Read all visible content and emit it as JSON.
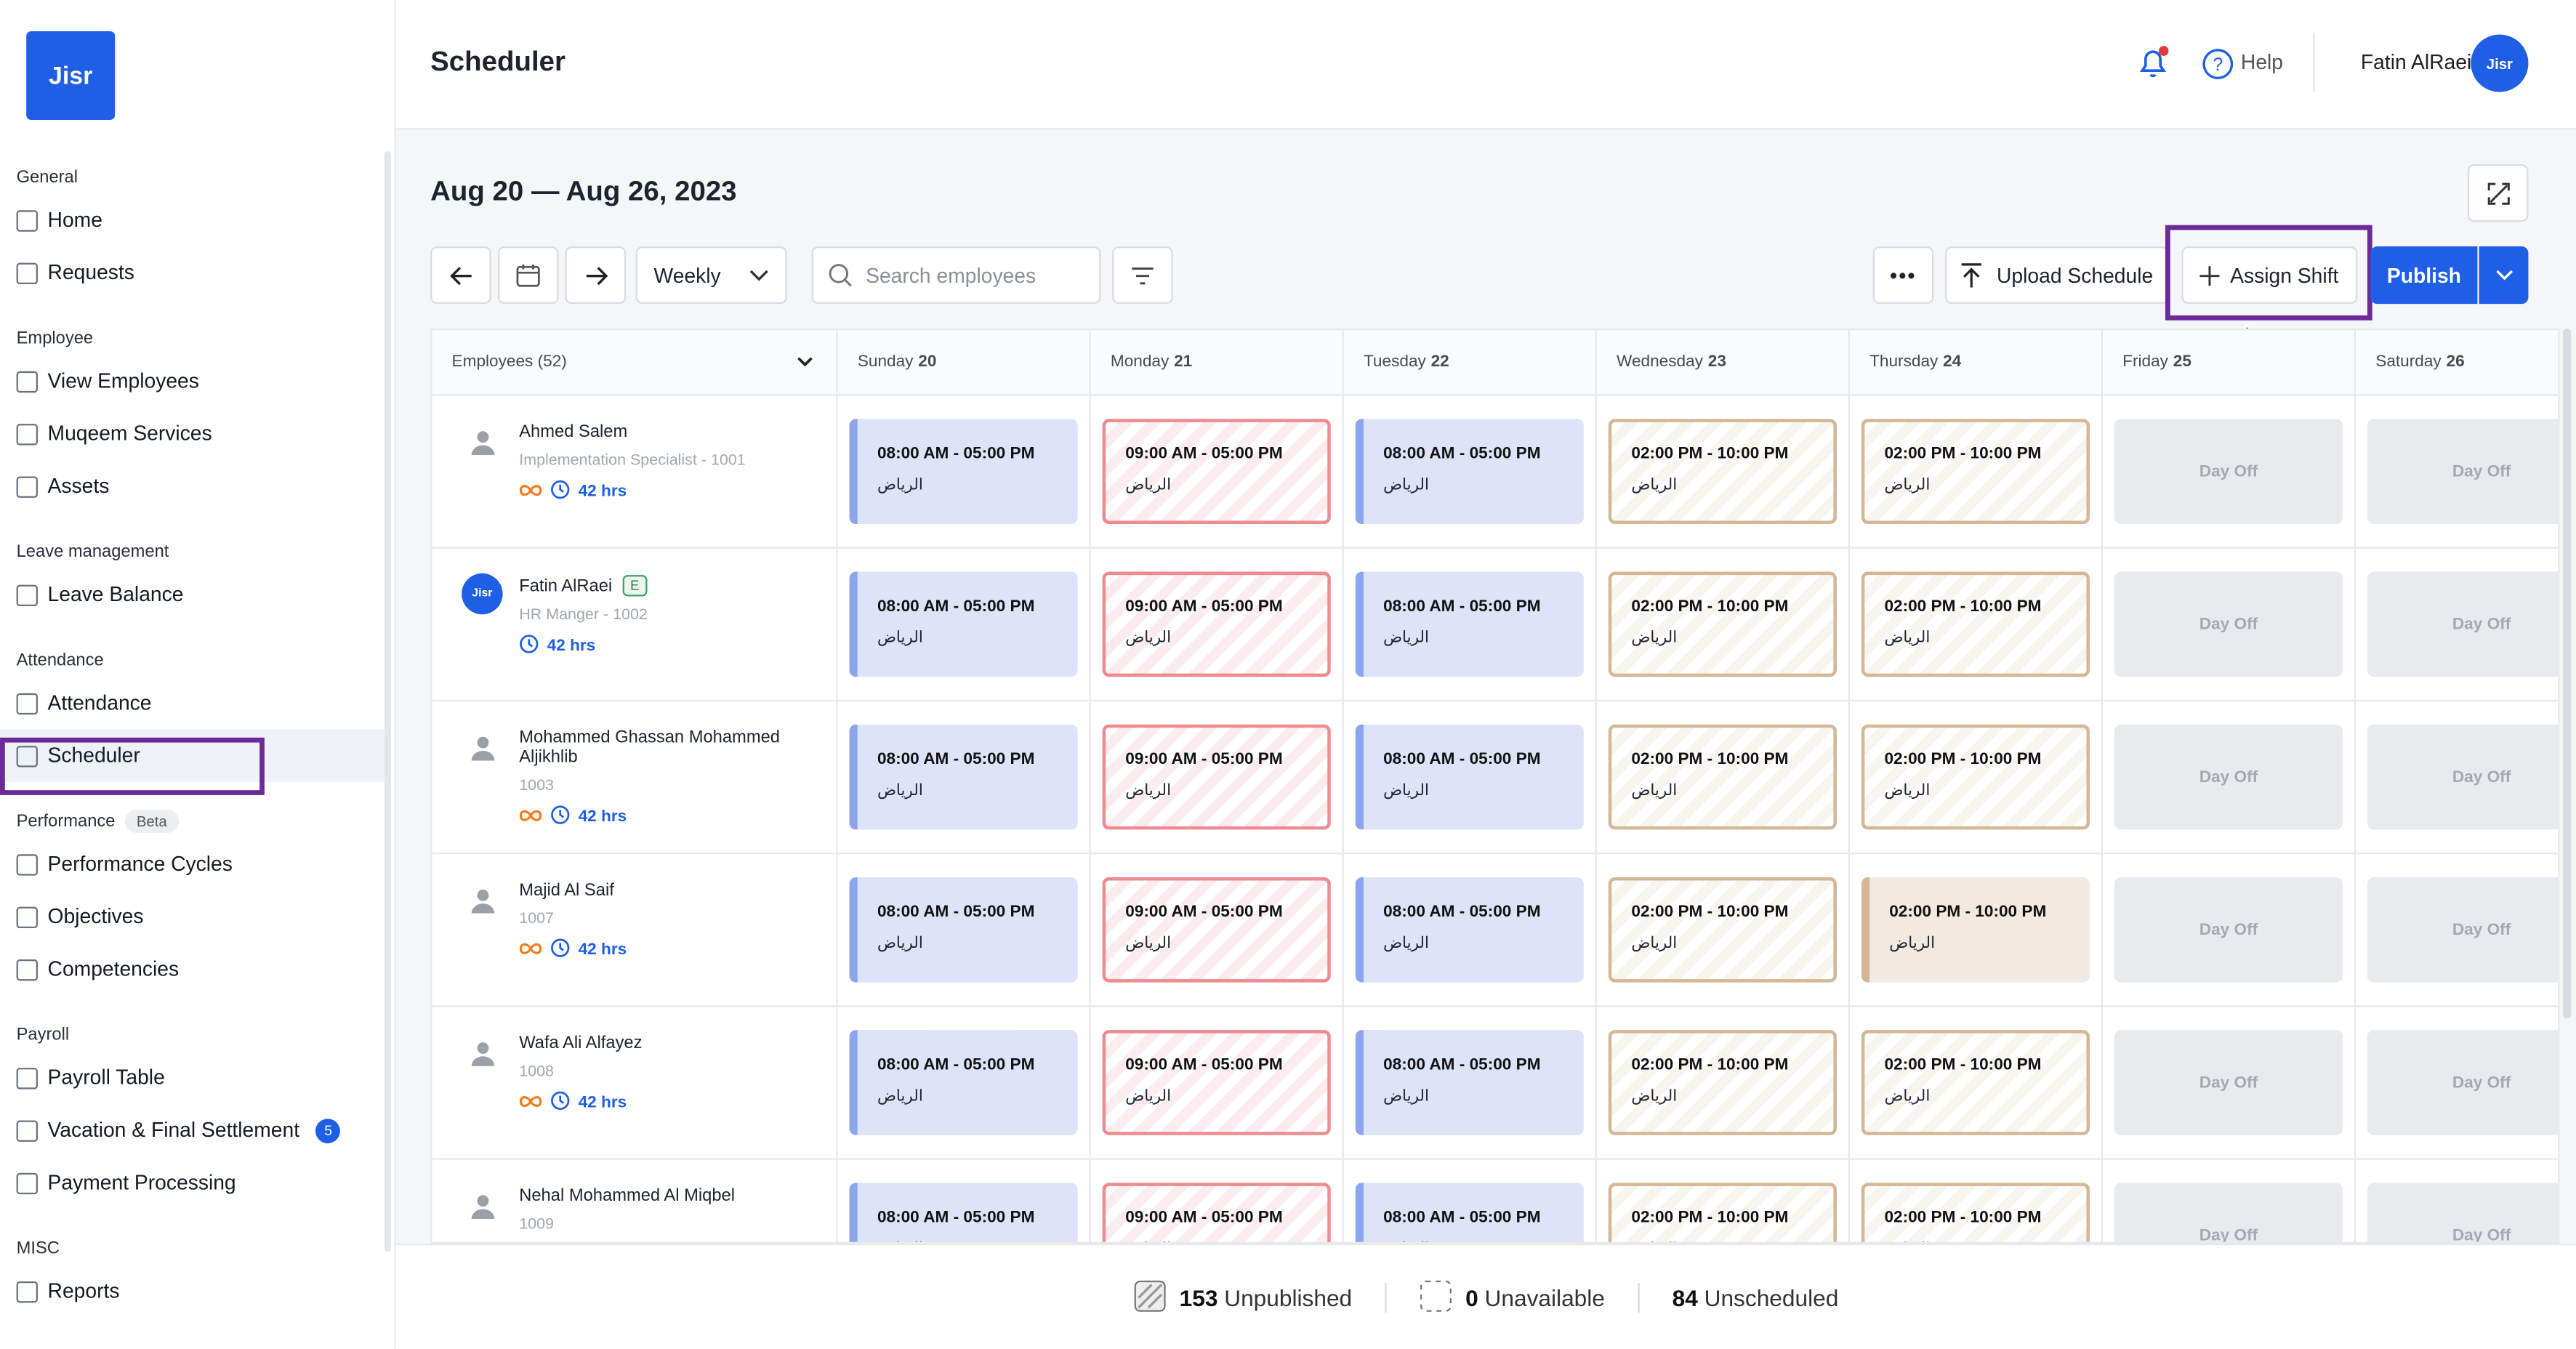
{
  "sidebar": {
    "logo": "Jisr",
    "sections": [
      {
        "title": "General",
        "items": [
          {
            "label": "Home"
          },
          {
            "label": "Requests"
          }
        ]
      },
      {
        "title": "Employee",
        "items": [
          {
            "label": "View Employees"
          },
          {
            "label": "Muqeem Services"
          },
          {
            "label": "Assets"
          }
        ]
      },
      {
        "title": "Leave management",
        "items": [
          {
            "label": "Leave Balance"
          }
        ]
      },
      {
        "title": "Attendance",
        "items": [
          {
            "label": "Attendance"
          },
          {
            "label": "Scheduler",
            "active": true
          }
        ]
      },
      {
        "title": "Performance",
        "badge": "Beta",
        "items": [
          {
            "label": "Performance Cycles"
          },
          {
            "label": "Objectives"
          },
          {
            "label": "Competencies"
          }
        ]
      },
      {
        "title": "Payroll",
        "items": [
          {
            "label": "Payroll Table"
          },
          {
            "label": "Vacation & Final Settlement",
            "badge": "5"
          },
          {
            "label": "Payment Processing"
          }
        ]
      },
      {
        "title": "MISC",
        "items": [
          {
            "label": "Reports"
          }
        ]
      }
    ]
  },
  "header": {
    "title": "Scheduler",
    "help": "Help",
    "user": "Fatin AlRaei",
    "avatar": "Jisr"
  },
  "toolbar": {
    "date_range": "Aug 20 — Aug 26, 2023",
    "view": "Weekly",
    "search_placeholder": "Search employees",
    "upload": "Upload Schedule",
    "assign": "Assign Shift",
    "publish": "Publish"
  },
  "grid": {
    "employees_header": "Employees (52)",
    "days": [
      {
        "name": "Sunday",
        "date": "20"
      },
      {
        "name": "Monday",
        "date": "21"
      },
      {
        "name": "Tuesday",
        "date": "22"
      },
      {
        "name": "Wednesday",
        "date": "23"
      },
      {
        "name": "Thursday",
        "date": "24"
      },
      {
        "name": "Friday",
        "date": "25"
      },
      {
        "name": "Saturday",
        "date": "26"
      }
    ],
    "rows": [
      {
        "name": "Ahmed Salem",
        "detail": "Implementation Specialist - 1001",
        "hours": "42 hrs",
        "loop_icon": true,
        "shifts": [
          {
            "time": "08:00 AM - 05:00 PM",
            "location": "الرياض",
            "color": "#8da4ee",
            "striped": false
          },
          {
            "time": "09:00 AM - 05:00 PM",
            "location": "الرياض",
            "color": "#ef8a8f",
            "striped": true
          },
          {
            "time": "08:00 AM - 05:00 PM",
            "location": "الرياض",
            "color": "#8da4ee",
            "striped": false
          },
          {
            "time": "02:00 PM - 10:00 PM",
            "location": "الرياض",
            "color": "#d4b896",
            "striped": true
          },
          {
            "time": "02:00 PM - 10:00 PM",
            "location": "الرياض",
            "color": "#d4b896",
            "striped": true
          },
          {
            "label": "Day Off"
          },
          {
            "label": "Day Off"
          }
        ]
      },
      {
        "name": "Fatin AlRaei",
        "badge": "E",
        "avatar": "Jisr",
        "detail": "HR Manger - 1002",
        "hours": "42 hrs",
        "loop_icon": false,
        "shifts": [
          {
            "time": "08:00 AM - 05:00 PM",
            "location": "الرياض",
            "color": "#8da4ee",
            "striped": false
          },
          {
            "time": "09:00 AM - 05:00 PM",
            "location": "الرياض",
            "color": "#ef8a8f",
            "striped": true
          },
          {
            "time": "08:00 AM - 05:00 PM",
            "location": "الرياض",
            "color": "#8da4ee",
            "striped": false
          },
          {
            "time": "02:00 PM - 10:00 PM",
            "location": "الرياض",
            "color": "#d4b896",
            "striped": true
          },
          {
            "time": "02:00 PM - 10:00 PM",
            "location": "الرياض",
            "color": "#d4b896",
            "striped": true
          },
          {
            "label": "Day Off"
          },
          {
            "label": "Day Off"
          }
        ]
      },
      {
        "name": "Mohammed Ghassan Mohammed Aljikhlib",
        "detail": "1003",
        "hours": "42 hrs",
        "loop_icon": true,
        "shifts": [
          {
            "time": "08:00 AM - 05:00 PM",
            "location": "الرياض",
            "color": "#8da4ee",
            "striped": false
          },
          {
            "time": "09:00 AM - 05:00 PM",
            "location": "الرياض",
            "color": "#ef8a8f",
            "striped": true
          },
          {
            "time": "08:00 AM - 05:00 PM",
            "location": "الرياض",
            "color": "#8da4ee",
            "striped": false
          },
          {
            "time": "02:00 PM - 10:00 PM",
            "location": "الرياض",
            "color": "#d4b896",
            "striped": true
          },
          {
            "time": "02:00 PM - 10:00 PM",
            "location": "الرياض",
            "color": "#d4b896",
            "striped": true
          },
          {
            "label": "Day Off"
          },
          {
            "label": "Day Off"
          }
        ]
      },
      {
        "name": "Majid Al Saif",
        "detail": "1007",
        "hours": "42 hrs",
        "loop_icon": true,
        "shifts": [
          {
            "time": "08:00 AM - 05:00 PM",
            "location": "الرياض",
            "color": "#8da4ee",
            "striped": false
          },
          {
            "time": "09:00 AM - 05:00 PM",
            "location": "الرياض",
            "color": "#ef8a8f",
            "striped": true
          },
          {
            "time": "08:00 AM - 05:00 PM",
            "location": "الرياض",
            "color": "#8da4ee",
            "striped": false
          },
          {
            "time": "02:00 PM - 10:00 PM",
            "location": "الرياض",
            "color": "#d4b896",
            "striped": true
          },
          {
            "time": "02:00 PM - 10:00 PM",
            "location": "الرياض",
            "color": "#d4b896",
            "striped": false
          },
          {
            "label": "Day Off"
          },
          {
            "label": "Day Off"
          }
        ]
      },
      {
        "name": "Wafa Ali Alfayez",
        "detail": "1008",
        "hours": "42 hrs",
        "loop_icon": true,
        "shifts": [
          {
            "time": "08:00 AM - 05:00 PM",
            "location": "الرياض",
            "color": "#8da4ee",
            "striped": false
          },
          {
            "time": "09:00 AM - 05:00 PM",
            "location": "الرياض",
            "color": "#ef8a8f",
            "striped": true
          },
          {
            "time": "08:00 AM - 05:00 PM",
            "location": "الرياض",
            "color": "#8da4ee",
            "striped": false
          },
          {
            "time": "02:00 PM - 10:00 PM",
            "location": "الرياض",
            "color": "#d4b896",
            "striped": true
          },
          {
            "time": "02:00 PM - 10:00 PM",
            "location": "الرياض",
            "color": "#d4b896",
            "striped": true
          },
          {
            "label": "Day Off"
          },
          {
            "label": "Day Off"
          }
        ]
      },
      {
        "name": "Nehal Mohammed Al Miqbel",
        "detail": "1009",
        "loop_icon": false,
        "shifts": [
          {
            "time": "08:00 AM - 05:00 PM",
            "location": "الرياض",
            "color": "#8da4ee",
            "striped": false
          },
          {
            "time": "09:00 AM - 05:00 PM",
            "location": "الرياض",
            "color": "#ef8a8f",
            "striped": true
          },
          {
            "time": "08:00 AM - 05:00 PM",
            "location": "الرياض",
            "color": "#8da4ee",
            "striped": false
          },
          {
            "time": "02:00 PM - 10:00 PM",
            "location": "الرياض",
            "color": "#d4b896",
            "striped": true
          },
          {
            "time": "02:00 PM - 10:00 PM",
            "location": "الرياض",
            "color": "#d4b896",
            "striped": true
          },
          {
            "label": "Day Off"
          },
          {
            "label": "Day Off"
          }
        ]
      }
    ]
  },
  "footer": {
    "stats": [
      {
        "count": "153",
        "label": "Unpublished"
      },
      {
        "count": "0",
        "label": "Unavailable"
      },
      {
        "count": "84",
        "label": "Unscheduled"
      }
    ]
  }
}
